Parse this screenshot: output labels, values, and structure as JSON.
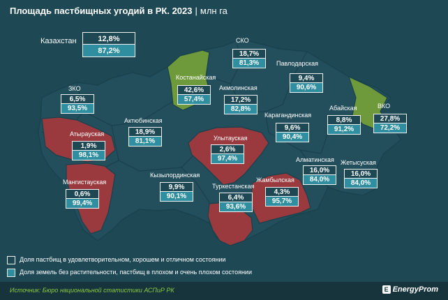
{
  "title": "Площадь пастбищных угодий в РК. 2023",
  "unit": "млн га",
  "kazakhstan": {
    "label": "Казахстан",
    "good": "12,8%",
    "bad": "87,2%"
  },
  "colors": {
    "background": "#1d4854",
    "region_neutral": "#234e5b",
    "region_green": "#6e9a3b",
    "region_red": "#9b3a3e",
    "box_teal": "#2f8fa0",
    "source_green": "#8ccc3f"
  },
  "regions": [
    {
      "name": "СКО",
      "good": "18,7%",
      "bad": "81,3%",
      "fill": "neutral"
    },
    {
      "name": "Павлодарская",
      "good": "9,4%",
      "bad": "90,6%",
      "fill": "neutral"
    },
    {
      "name": "Костанайская",
      "good": "42,6%",
      "bad": "57,4%",
      "fill": "green"
    },
    {
      "name": "Акмолинская",
      "good": "17,2%",
      "bad": "82,8%",
      "fill": "neutral"
    },
    {
      "name": "ЗКО",
      "good": "6,5%",
      "bad": "93,5%",
      "fill": "neutral"
    },
    {
      "name": "Актюбинская",
      "good": "18,9%",
      "bad": "81,1%",
      "fill": "neutral"
    },
    {
      "name": "Атырауская",
      "good": "1,9%",
      "bad": "98,1%",
      "fill": "red"
    },
    {
      "name": "Мангистауская",
      "good": "0,6%",
      "bad": "99,4%",
      "fill": "red"
    },
    {
      "name": "Кызылординская",
      "good": "9,9%",
      "bad": "90,1%",
      "fill": "neutral"
    },
    {
      "name": "Улытауская",
      "good": "2,6%",
      "bad": "97,4%",
      "fill": "red"
    },
    {
      "name": "Карагандинская",
      "good": "9,6%",
      "bad": "90,4%",
      "fill": "neutral"
    },
    {
      "name": "Абайская",
      "good": "8,8%",
      "bad": "91,2%",
      "fill": "neutral"
    },
    {
      "name": "ВКО",
      "good": "27,8%",
      "bad": "72,2%",
      "fill": "green"
    },
    {
      "name": "Туркестанская",
      "good": "6,4%",
      "bad": "93,6%",
      "fill": "red"
    },
    {
      "name": "Жамбылская",
      "good": "4,3%",
      "bad": "95,7%",
      "fill": "red"
    },
    {
      "name": "Алматинская",
      "good": "16,0%",
      "bad": "84,0%",
      "fill": "neutral"
    },
    {
      "name": "Жетысуская",
      "good": "16,0%",
      "bad": "84,0%",
      "fill": "neutral"
    }
  ],
  "legend": [
    {
      "text": "Доля пастбищ в удовлетворительном, хорошем и отличном состоянии",
      "color": "#1d4854"
    },
    {
      "text": "Доля земель без растительности, пастбищ в плохом и очень плохом состоянии",
      "color": "#2f8fa0"
    }
  ],
  "source": "Источник: Бюро национальной статистики АСПиР РК",
  "brand": "EnergyProm"
}
